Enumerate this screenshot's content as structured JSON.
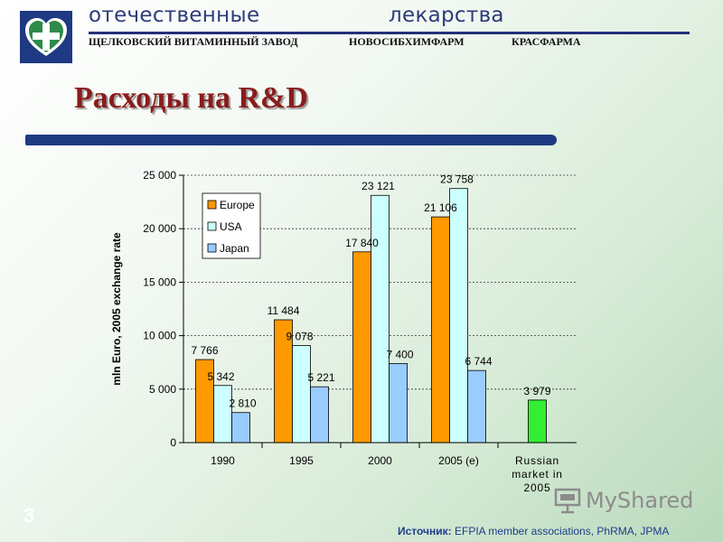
{
  "header": {
    "brand_left": "отечественные",
    "brand_right": "лекарства",
    "partners": [
      "ЩЕЛКОВСКИЙ ВИТАМИННЫЙ ЗАВОД",
      "НОВОСИБХИМФАРМ",
      "КРАСФАРМА"
    ],
    "logo_icon": "heart-cross-logo-icon",
    "logo_color": "#1f3a82"
  },
  "title": "Расходы на R&D",
  "slide_number": "3",
  "source": {
    "label": "Источник:",
    "text": " EFPIA member associations, PhRMA, JPMA"
  },
  "watermark": {
    "text": "MyShared",
    "icon": "presentation-board-icon"
  },
  "chart_data": {
    "type": "bar",
    "categories": [
      "1990",
      "1995",
      "2000",
      "2005 (e)",
      "Russian market in 2005"
    ],
    "category_lines": [
      [
        "1990"
      ],
      [
        "1995"
      ],
      [
        "2000"
      ],
      [
        "2005 (e)"
      ],
      [
        "Russian",
        "market in",
        "2005"
      ]
    ],
    "series": [
      {
        "name": "Europe",
        "color": "#ff9900",
        "values": [
          7766,
          11484,
          17840,
          21106,
          null
        ],
        "labels": [
          "7 766",
          "11 484",
          "17 840",
          "21 106",
          ""
        ]
      },
      {
        "name": "USA",
        "color": "#ccffff",
        "values": [
          5342,
          9078,
          23121,
          23758,
          null
        ],
        "labels": [
          "5 342",
          "9 078",
          "23 121",
          "23 758",
          ""
        ]
      },
      {
        "name": "Japan",
        "color": "#99ccff",
        "values": [
          2810,
          5221,
          7400,
          6744,
          null
        ],
        "labels": [
          "2 810",
          "5 221",
          "7 400",
          "6 744",
          ""
        ]
      },
      {
        "name": "",
        "color": "#33ee33",
        "values": [
          null,
          null,
          null,
          null,
          3979
        ],
        "labels": [
          "",
          "",
          "",
          "",
          "3 979"
        ]
      }
    ],
    "ylabel": "mln Euro, 2005 exchange rate",
    "xlabel": "",
    "ylim": [
      0,
      25000
    ],
    "yticks": [
      0,
      5000,
      10000,
      15000,
      20000,
      25000
    ],
    "ytick_labels": [
      "0",
      "5 000",
      "10 000",
      "15 000",
      "20 000",
      "25 000"
    ],
    "grid": true,
    "legend_position": "top-left"
  }
}
